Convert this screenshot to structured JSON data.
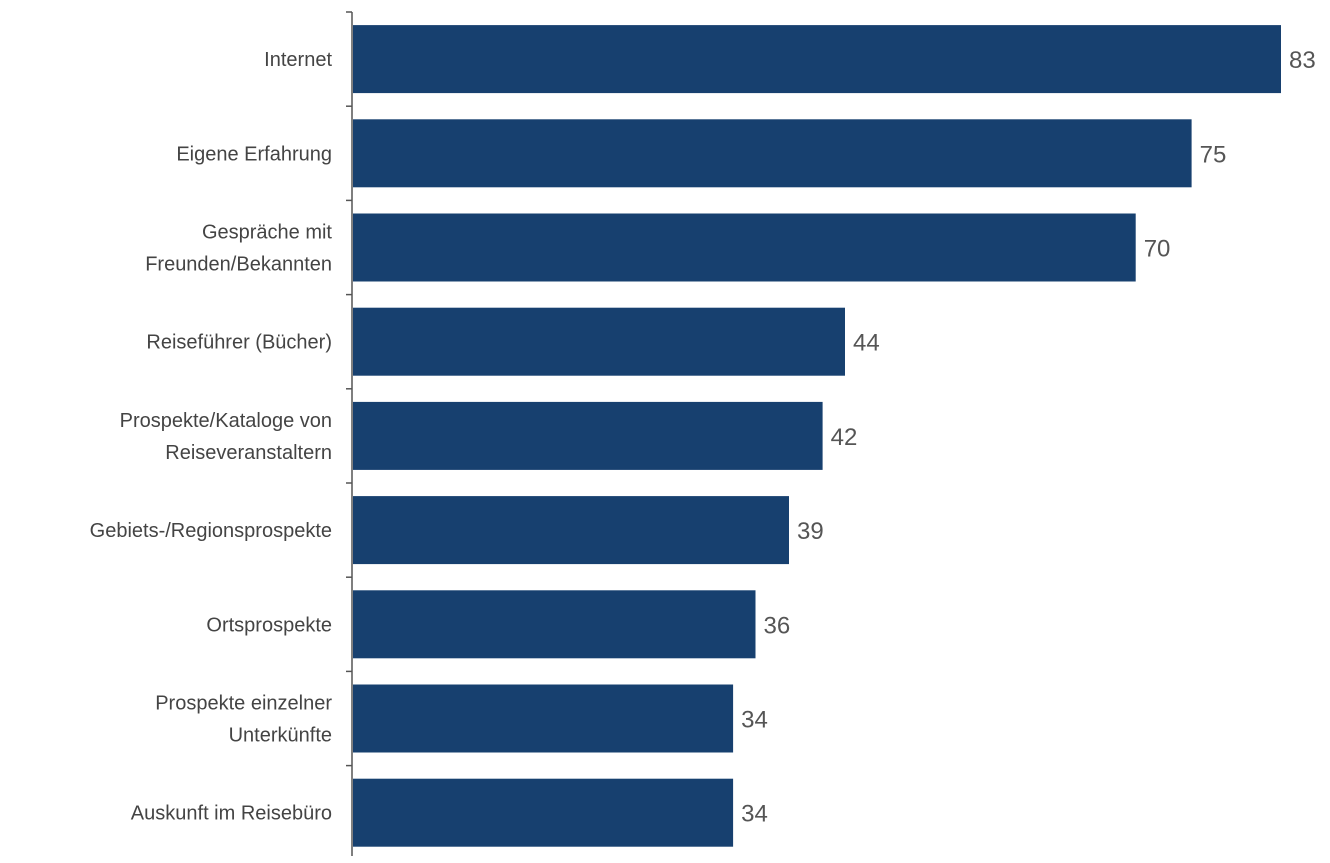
{
  "chart_data": {
    "type": "bar",
    "orientation": "horizontal",
    "title": "",
    "xlabel": "",
    "ylabel": "",
    "categories": [
      [
        "Internet"
      ],
      [
        "Eigene Erfahrung"
      ],
      [
        "Gespräche mit",
        "Freunden/Bekannten"
      ],
      [
        "Reiseführer (Bücher)"
      ],
      [
        "Prospekte/Kataloge von",
        "Reiseveranstaltern"
      ],
      [
        "Gebiets-/Regionsprospekte"
      ],
      [
        "Ortsprospekte"
      ],
      [
        "Prospekte einzelner",
        "Unterkünfte"
      ],
      [
        "Auskunft im Reisebüro"
      ]
    ],
    "values": [
      83,
      75,
      70,
      44,
      42,
      39,
      36,
      34,
      34
    ],
    "value_labels": [
      "83",
      "75",
      "70",
      "44",
      "42",
      "39",
      "36",
      "34",
      "34"
    ],
    "xlim": [
      0,
      83
    ],
    "grid": false,
    "legend": "none",
    "bar_color": "#17406f",
    "axis_color": "#555555",
    "label_color": "#444444",
    "value_label_color": "#555555"
  }
}
